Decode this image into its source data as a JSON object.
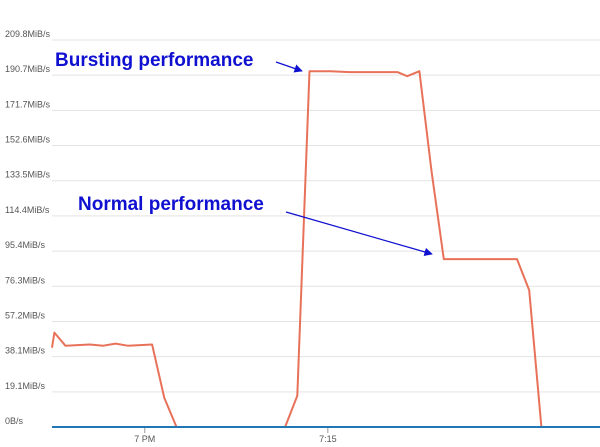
{
  "chart_data": {
    "type": "line",
    "annotations": [
      "Bursting performance",
      "Normal performance"
    ],
    "x": [
      1132.4,
      1132.6,
      1133.5,
      1135.5,
      1136.6,
      1137.6,
      1138.6,
      1140.6,
      1141.6,
      1142.6,
      1151.5,
      1152.5,
      1153.5,
      1155.2,
      1156.8,
      1158.6,
      1160.7,
      1161.5,
      1162.5,
      1163.5,
      1164.5,
      1166.5,
      1168.4,
      1170.5,
      1171.5,
      1172.5,
      1177.3
    ],
    "series": [
      {
        "color": "#e8715a",
        "values": [
          43,
          51.2,
          44.1,
          44.7,
          44.1,
          45.2,
          44.1,
          44.7,
          15.8,
          0,
          0,
          16.9,
          192.9,
          192.9,
          192.4,
          192.4,
          192.4,
          190.2,
          192.9,
          138.4,
          91.0,
          91.0,
          91.0,
          91.0,
          74.1,
          0,
          0
        ]
      },
      {
        "color": "#1f77b4",
        "values": [
          0,
          0,
          0,
          0,
          0,
          0,
          0,
          0,
          0,
          0,
          0,
          0,
          0,
          0,
          0,
          0,
          0,
          0,
          0,
          0,
          0,
          0,
          0,
          0,
          0,
          0,
          0
        ]
      }
    ],
    "xlim": [
      1132.4,
      1177.3
    ],
    "xticks": [
      {
        "value": 1140,
        "label": "7 PM"
      },
      {
        "value": 1155,
        "label": "7:15"
      }
    ],
    "ylim": [
      0,
      209.8
    ],
    "yticks": [
      {
        "value": 0,
        "label": "0B/s"
      },
      {
        "value": 19.07,
        "label": "19.1MiB/s"
      },
      {
        "value": 38.15,
        "label": "38.1MiB/s"
      },
      {
        "value": 57.22,
        "label": "57.2MiB/s"
      },
      {
        "value": 76.29,
        "label": "76.3MiB/s"
      },
      {
        "value": 95.37,
        "label": "95.4MiB/s"
      },
      {
        "value": 114.44,
        "label": "114.4MiB/s"
      },
      {
        "value": 133.51,
        "label": "133.5MiB/s"
      },
      {
        "value": 152.59,
        "label": "152.6MiB/s"
      },
      {
        "value": 171.66,
        "label": "171.7MiB/s"
      },
      {
        "value": 190.73,
        "label": "190.7MiB/s"
      },
      {
        "value": 209.8,
        "label": "209.8MiB/s"
      }
    ],
    "grid": true
  }
}
